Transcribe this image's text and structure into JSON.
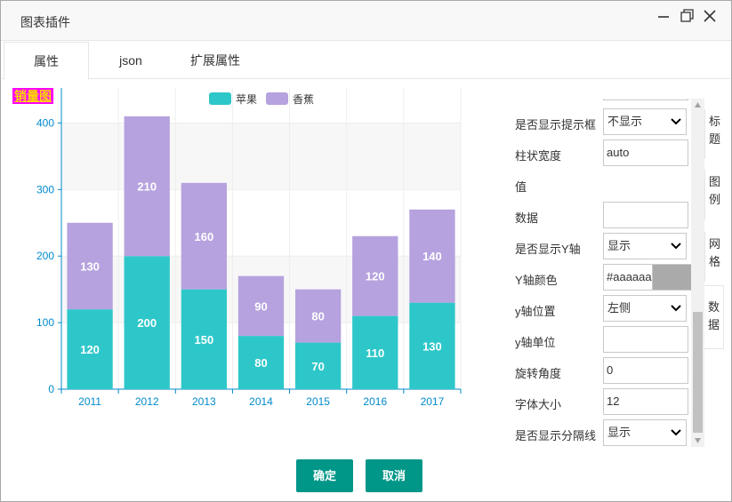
{
  "window": {
    "title": "图表插件",
    "icons": [
      "minimize-icon",
      "restore-icon",
      "close-icon"
    ]
  },
  "tabs": [
    {
      "label": "属性",
      "active": true
    },
    {
      "label": "json",
      "active": false
    },
    {
      "label": "扩展属性",
      "active": false
    }
  ],
  "side_tabs": [
    {
      "label": "标题",
      "active": false
    },
    {
      "label": "图例",
      "active": false
    },
    {
      "label": "网格",
      "active": false
    },
    {
      "label": "数据",
      "active": true
    }
  ],
  "properties": [
    {
      "label": "是否显示提示框",
      "type": "select",
      "value": "不显示"
    },
    {
      "label": "柱状宽度",
      "type": "input",
      "value": "auto"
    },
    {
      "label": "值",
      "type": "none",
      "value": ""
    },
    {
      "label": "数据",
      "type": "input",
      "value": ""
    },
    {
      "label": "是否显示Y轴",
      "type": "select",
      "value": "显示"
    },
    {
      "label": "Y轴颜色",
      "type": "color",
      "value": "#aaaaaa"
    },
    {
      "label": "y轴位置",
      "type": "select",
      "value": "左侧"
    },
    {
      "label": "y轴单位",
      "type": "input",
      "value": ""
    },
    {
      "label": "旋转角度",
      "type": "input",
      "value": "0"
    },
    {
      "label": "字体大小",
      "type": "input",
      "value": "12"
    },
    {
      "label": "是否显示分隔线",
      "type": "select",
      "value": "显示"
    }
  ],
  "buttons": {
    "confirm": "确定",
    "cancel": "取消"
  },
  "colors": {
    "accent": "#009688",
    "apple": "#2ec7c9",
    "banana": "#b6a2de",
    "axis": "#008acd",
    "title_bg": "#ff00ff",
    "title_fg": "#ffd700"
  },
  "chart_data": {
    "type": "bar",
    "stacked": true,
    "title": "销量图",
    "categories": [
      "2011",
      "2012",
      "2013",
      "2014",
      "2015",
      "2016",
      "2017"
    ],
    "series": [
      {
        "name": "苹果",
        "values": [
          120,
          200,
          150,
          80,
          70,
          110,
          130
        ]
      },
      {
        "name": "香蕉",
        "values": [
          130,
          210,
          160,
          90,
          80,
          120,
          140
        ]
      }
    ],
    "ylim": [
      0,
      450
    ],
    "yticks": [
      0,
      100,
      200,
      300,
      400
    ],
    "legend": "top-center",
    "grid": true
  }
}
